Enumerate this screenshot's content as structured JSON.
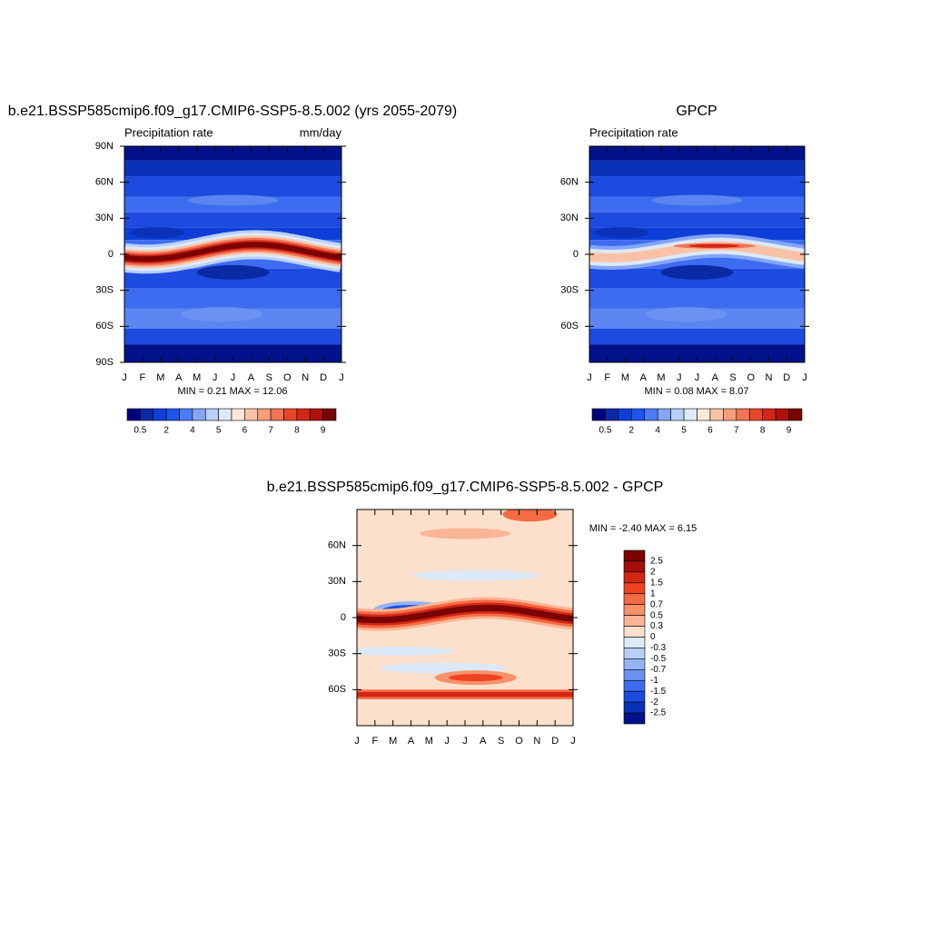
{
  "chart_data": [
    {
      "type": "contour",
      "title": "b.e21.BSSP585cmip6.f09_g17.CMIP6-SSP5-8.5.002 (yrs 2055-2079)",
      "left_label": "Precipitation rate",
      "right_label": "mm/day",
      "categories": [
        "J",
        "F",
        "M",
        "A",
        "M",
        "J",
        "J",
        "A",
        "S",
        "O",
        "N",
        "D",
        "J"
      ],
      "ylim": [
        -90,
        90
      ],
      "yticks": [
        {
          "value": 90,
          "label": "90N"
        },
        {
          "value": 60,
          "label": "60N"
        },
        {
          "value": 30,
          "label": "30N"
        },
        0,
        {
          "value": -30,
          "label": "30S"
        },
        {
          "value": -60,
          "label": "60S"
        },
        {
          "value": -90,
          "label": "90S"
        }
      ],
      "min_max": "MIN =   0.21 MAX =  12.06",
      "colorbar": {
        "orientation": "horizontal",
        "labels": [
          0.5,
          2,
          4,
          5,
          6,
          7,
          8,
          9
        ],
        "colors": [
          "#00007f",
          "#0a2aa5",
          "#0d3fd8",
          "#1b55f0",
          "#4c7cf5",
          "#84a6f5",
          "#b8cff7",
          "#dde9f8",
          "#fde8d8",
          "#f9c2a6",
          "#f59e7c",
          "#f17454",
          "#e84628",
          "#d32615",
          "#b0120b",
          "#7a0403"
        ]
      }
    },
    {
      "type": "contour",
      "title": "GPCP",
      "left_label": "Precipitation rate",
      "categories": [
        "J",
        "F",
        "M",
        "A",
        "M",
        "J",
        "J",
        "A",
        "S",
        "O",
        "N",
        "D",
        "J"
      ],
      "ylim": [
        -90,
        90
      ],
      "yticks": [
        {
          "value": 60,
          "label": "60N"
        },
        {
          "value": 30,
          "label": "30N"
        },
        0,
        {
          "value": -30,
          "label": "30S"
        },
        {
          "value": -60,
          "label": "60S"
        }
      ],
      "min_max": "MIN =   0.08 MAX =   8.07",
      "colorbar": {
        "orientation": "horizontal",
        "labels": [
          0.5,
          2,
          4,
          5,
          6,
          7,
          8,
          9
        ],
        "colors": [
          "#00007f",
          "#0a2aa5",
          "#0d3fd8",
          "#1b55f0",
          "#4c7cf5",
          "#84a6f5",
          "#b8cff7",
          "#dde9f8",
          "#fde8d8",
          "#f9c2a6",
          "#f59e7c",
          "#f17454",
          "#e84628",
          "#d32615",
          "#b0120b",
          "#7a0403"
        ]
      }
    },
    {
      "type": "contour",
      "title": "b.e21.BSSP585cmip6.f09_g17.CMIP6-SSP5-8.5.002 - GPCP",
      "categories": [
        "J",
        "F",
        "M",
        "A",
        "M",
        "J",
        "J",
        "A",
        "S",
        "O",
        "N",
        "D",
        "J"
      ],
      "ylim": [
        -90,
        90
      ],
      "yticks": [
        {
          "value": 60,
          "label": "60N"
        },
        {
          "value": 30,
          "label": "30N"
        },
        0,
        {
          "value": -30,
          "label": "30S"
        },
        {
          "value": -60,
          "label": "60S"
        }
      ],
      "min_max": "MIN =  -2.40 MAX =   6.15",
      "colorbar": {
        "orientation": "vertical",
        "labels": [
          2.5,
          2,
          1.5,
          1,
          0.7,
          0.5,
          0.3,
          0,
          -0.3,
          -0.5,
          -0.7,
          -1,
          -1.5,
          -2,
          -2.5
        ],
        "colors": [
          "#7a0403",
          "#a50f0a",
          "#d32615",
          "#ee4321",
          "#f56b43",
          "#f7916a",
          "#f9b595",
          "#fde0cc",
          "#dce9f8",
          "#b8cff7",
          "#94b3f5",
          "#6b92f2",
          "#3e6cf0",
          "#1d4be0",
          "#0a32b8",
          "#00128a"
        ]
      }
    }
  ]
}
